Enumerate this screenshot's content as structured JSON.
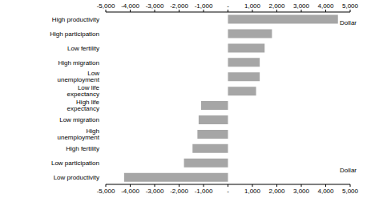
{
  "chart_data": {
    "type": "bar",
    "orientation": "horizontal",
    "categories": [
      "High productivity",
      "High participation",
      "Low fertility",
      "High migration",
      "Low unemployment",
      "Low life expectancy",
      "High life expectancy",
      "Low migration",
      "High unemployment",
      "High fertility",
      "Low participation",
      "Low productivity"
    ],
    "values": [
      4500,
      1800,
      1500,
      1300,
      1300,
      1150,
      -1100,
      -1200,
      -1250,
      -1450,
      -1800,
      -4250
    ],
    "color": "#a6a6a6",
    "xlim": [
      -5000,
      5000
    ],
    "xticks": [
      {
        "value": -5000,
        "label": "-5,000"
      },
      {
        "value": -4000,
        "label": "-4,000"
      },
      {
        "value": -3000,
        "label": "-3,000"
      },
      {
        "value": -2000,
        "label": "-2,000"
      },
      {
        "value": -1000,
        "label": "-1,000"
      },
      {
        "value": 0,
        "label": "-"
      },
      {
        "value": 1000,
        "label": "1,000"
      },
      {
        "value": 2000,
        "label": "2,000"
      },
      {
        "value": 3000,
        "label": "3,000"
      },
      {
        "value": 4000,
        "label": "4,000"
      },
      {
        "value": 5000,
        "label": "5,000"
      }
    ],
    "annotations": [
      "Dollar",
      "Dollar"
    ],
    "grid": false
  }
}
